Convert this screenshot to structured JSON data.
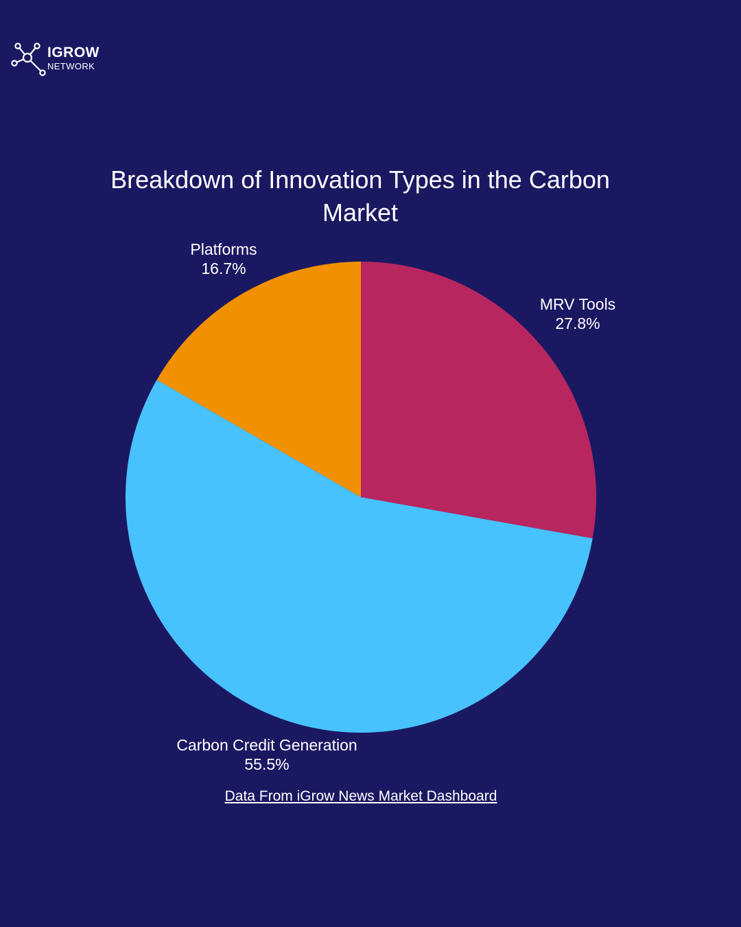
{
  "logo": {
    "brand": "IGROW",
    "subtitle": "NETWORK",
    "icon": "network-nodes-icon"
  },
  "source_link": "Data From iGrow News Market Dashboard",
  "chart_data": {
    "type": "pie",
    "title": "Breakdown of Innovation Types in the Carbon Market",
    "start_angle": "12 o'clock",
    "direction": "clockwise",
    "slices": [
      {
        "label": "MRV Tools",
        "value": 27.8,
        "value_label": "27.8%",
        "color": "#b8265f"
      },
      {
        "label": "Carbon Credit Generation",
        "value": 55.5,
        "value_label": "55.5%",
        "color": "#48c2fd"
      },
      {
        "label": "Platforms",
        "value": 16.7,
        "value_label": "16.7%",
        "color": "#f19000"
      }
    ]
  }
}
